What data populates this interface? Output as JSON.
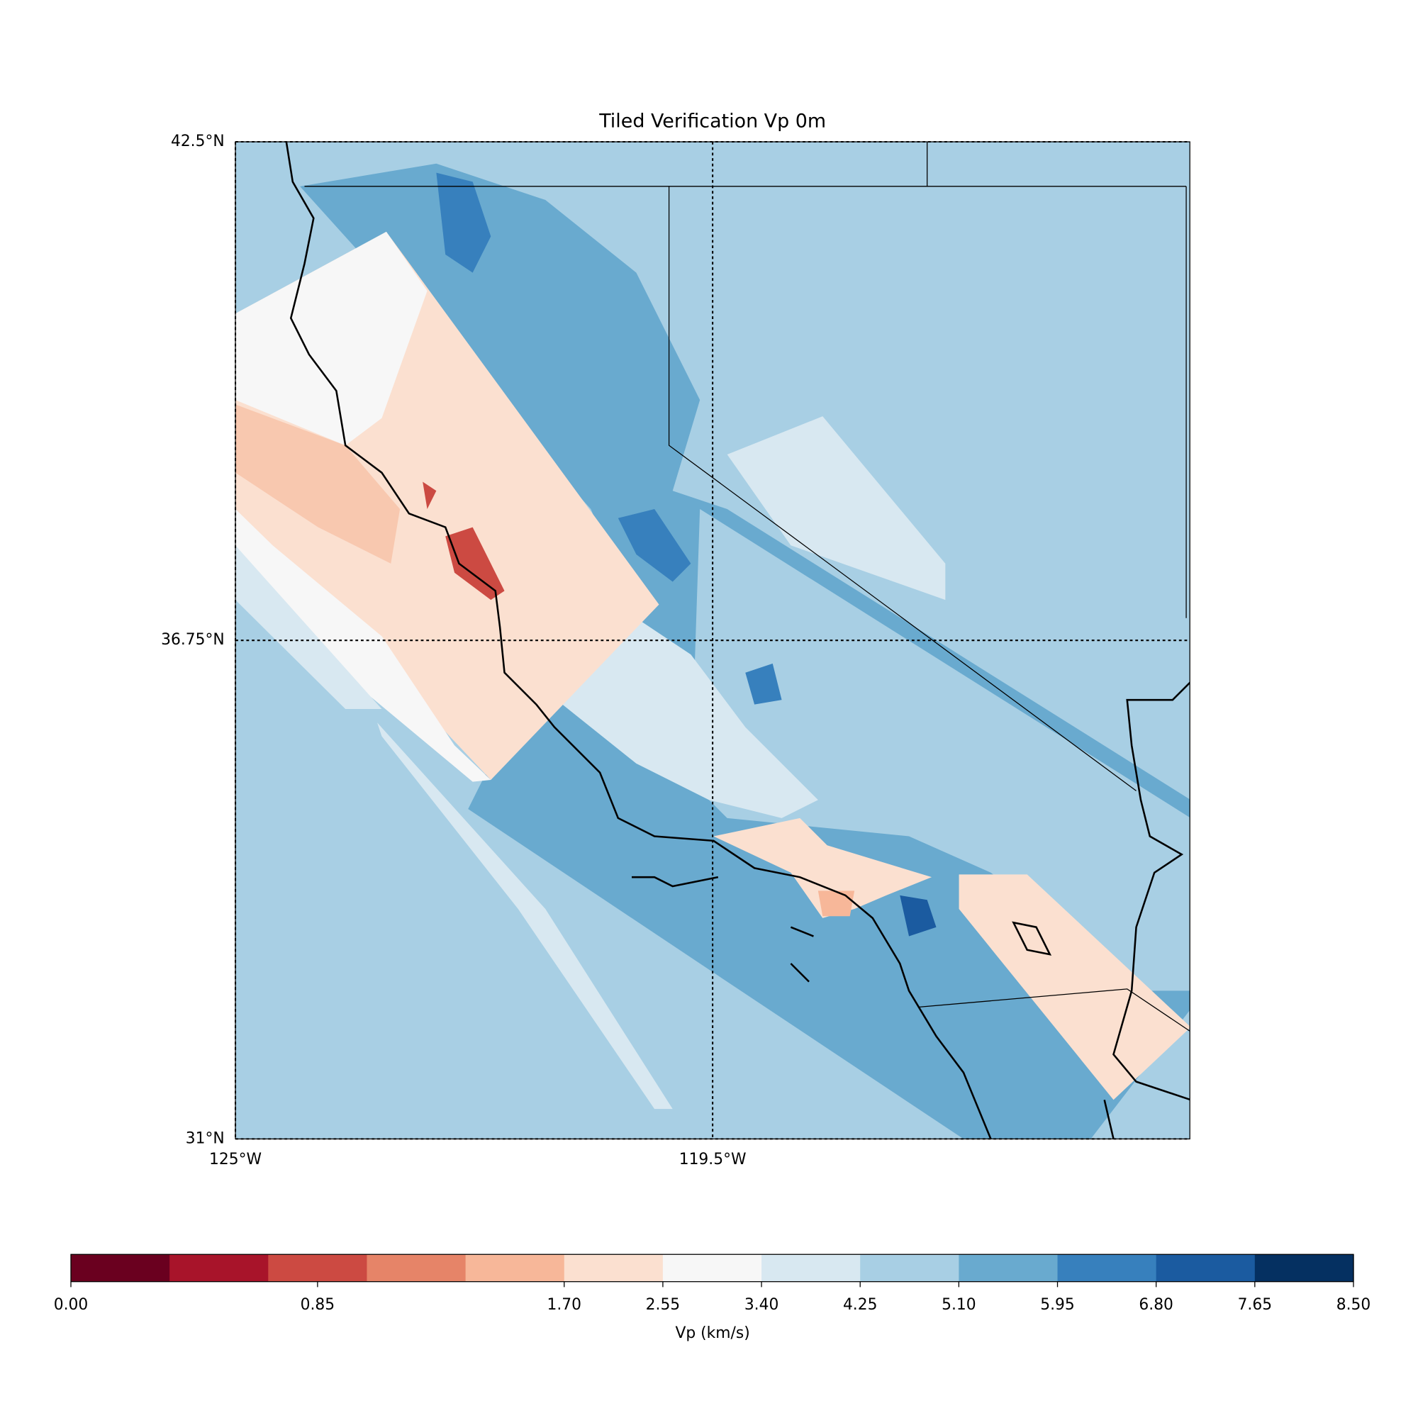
{
  "chart_data": {
    "type": "map",
    "title": "Tiled Verification Vp 0m",
    "xlim": [
      -125,
      -114
    ],
    "ylim": [
      31,
      42.5
    ],
    "xticks": [
      {
        "value": -125,
        "label": "125°W"
      },
      {
        "value": -119.5,
        "label": "119.5°W"
      }
    ],
    "yticks": [
      {
        "value": 31,
        "label": "31°N"
      },
      {
        "value": 36.75,
        "label": "36.75°N"
      },
      {
        "value": 42.5,
        "label": "42.5°N"
      }
    ],
    "grid": true,
    "colorbar": {
      "label": "Vp (km/s)",
      "bounds": [
        0,
        0.34,
        0.68,
        1.02,
        1.36,
        1.7,
        2.55,
        3.4,
        4.25,
        5.1,
        5.95,
        6.8,
        7.65,
        8.5
      ],
      "colors": [
        "#6a001f",
        "#a8142a",
        "#cc4a42",
        "#e68468",
        "#f7b799",
        "#fbe0d0",
        "#f7f7f7",
        "#d8e8f1",
        "#a8cfe4",
        "#69aacf",
        "#3780bd",
        "#1b5ba0",
        "#053061"
      ],
      "ticks": [
        {
          "value": 0,
          "label": "0.00"
        },
        {
          "value": 0.85,
          "label": "0.85"
        },
        {
          "value": 1.7,
          "label": "1.70"
        },
        {
          "value": 2.55,
          "label": "2.55"
        },
        {
          "value": 3.4,
          "label": "3.40"
        },
        {
          "value": 4.25,
          "label": "4.25"
        },
        {
          "value": 5.1,
          "label": "5.10"
        },
        {
          "value": 5.95,
          "label": "5.95"
        },
        {
          "value": 6.8,
          "label": "6.80"
        },
        {
          "value": 7.65,
          "label": "7.65"
        },
        {
          "value": 8.5,
          "label": "8.50"
        }
      ]
    }
  }
}
